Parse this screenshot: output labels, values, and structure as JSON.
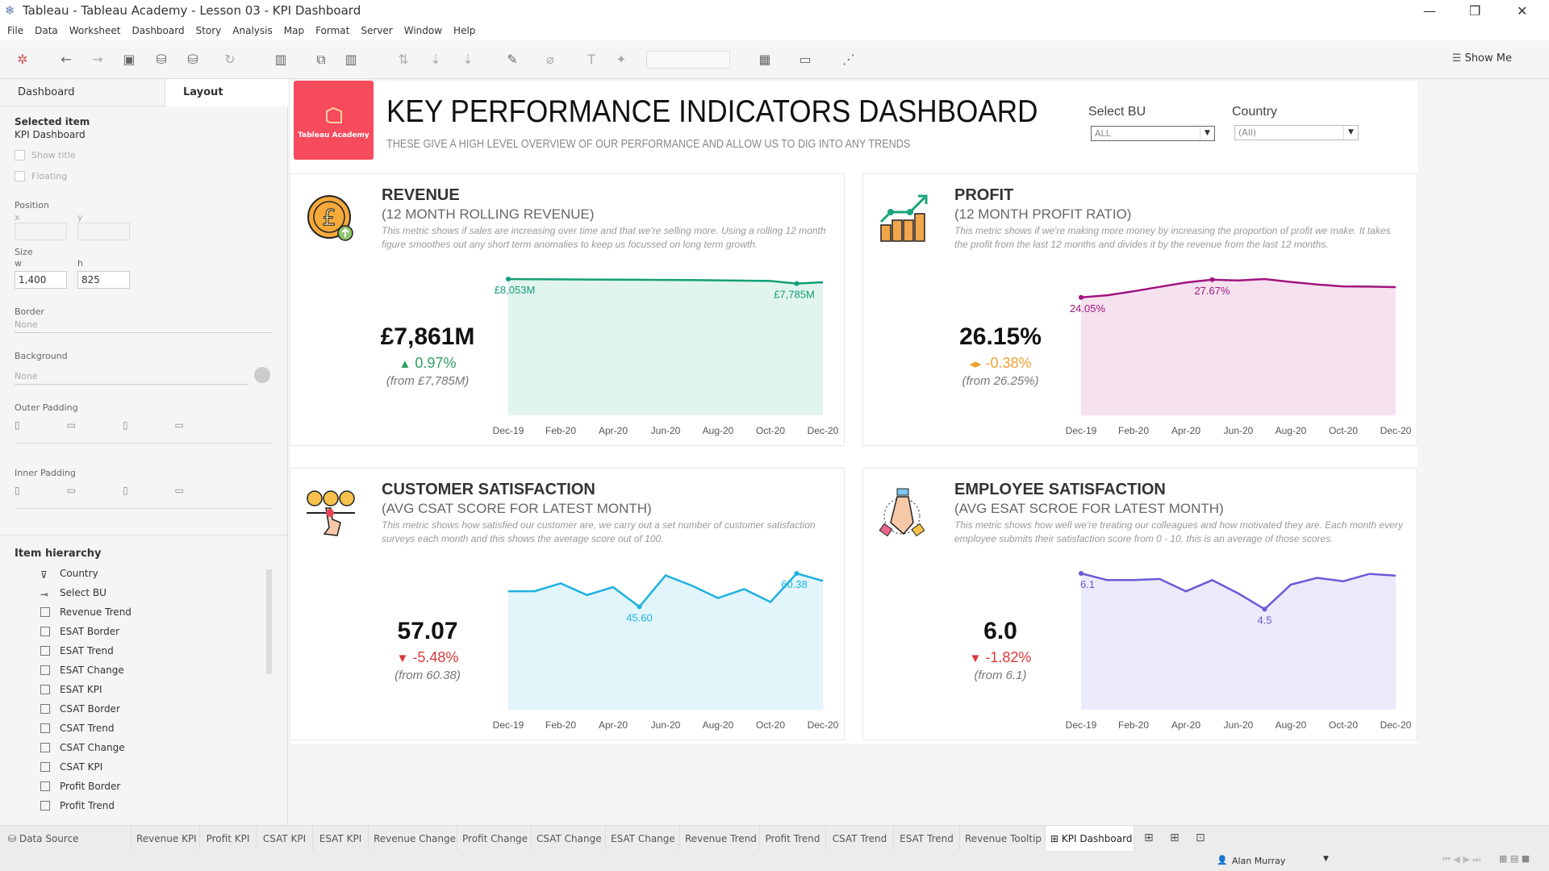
{
  "window": {
    "title": "Tableau - Tableau Academy - Lesson 03 - KPI Dashboard"
  },
  "menu": [
    "File",
    "Data",
    "Worksheet",
    "Dashboard",
    "Story",
    "Analysis",
    "Map",
    "Format",
    "Server",
    "Window",
    "Help"
  ],
  "toolbar": {
    "show_me": "Show Me"
  },
  "left_panel": {
    "tabs": [
      "Dashboard",
      "Layout"
    ],
    "selected_item_label": "Selected item",
    "selected_item": "KPI Dashboard",
    "show_title": "Show title",
    "floating": "Floating",
    "position_label": "Position",
    "x_label": "x",
    "y_label": "y",
    "size_label": "Size",
    "w_label": "w",
    "h_label": "h",
    "w": "1,400",
    "h": "825",
    "border_label": "Border",
    "border": "None",
    "background_label": "Background",
    "background": "None",
    "outer_padding": "Outer Padding",
    "inner_padding": "Inner Padding",
    "hierarchy_label": "Item hierarchy",
    "hierarchy": [
      "Country",
      "Select BU",
      "Revenue Trend",
      "ESAT Border",
      "ESAT Trend",
      "ESAT Change",
      "ESAT KPI",
      "CSAT Border",
      "CSAT Trend",
      "CSAT Change",
      "CSAT KPI",
      "Profit Border",
      "Profit Trend"
    ]
  },
  "dashboard": {
    "logo": "Tableau Academy",
    "title": "KEY PERFORMANCE INDICATORS DASHBOARD",
    "subtitle": "THESE GIVE A HIGH LEVEL OVERVIEW OF OUR PERFORMANCE AND ALLOW US TO DIG INTO ANY TRENDS",
    "filters": [
      {
        "label": "Select BU",
        "value": "ALL"
      },
      {
        "label": "Country",
        "value": "(All)"
      }
    ],
    "cards": [
      {
        "title": "REVENUE",
        "subtitle": "(12 MONTH ROLLING REVENUE)",
        "description": "This metric shows if sales are increasing over time and that we're selling more. Using a rolling 12 month figure smoothes out any short term anomalies to keep us focussed on long term growth.",
        "value": "£7,861M",
        "change": "0.97%",
        "direction": "up",
        "from": "(from £7,785M)",
        "icon": "pound-coin-icon",
        "color": "#129f77",
        "fill": "#e2f4ee"
      },
      {
        "title": "PROFIT",
        "subtitle": "(12 MONTH PROFIT RATIO)",
        "description": "This metric shows if we're making more money by increasing the proportion of profit we make. It takes the profit from the last 12 months and divides it by the revenue from the last 12 months.",
        "value": "26.15%",
        "change": "-0.38%",
        "direction": "flat",
        "from": "(from 26.25%)",
        "icon": "growth-chart-icon",
        "color": "#a1157f",
        "fill": "#f6e1ef"
      },
      {
        "title": "CUSTOMER SATISFACTION",
        "subtitle": "(AVG CSAT SCORE FOR LATEST MONTH)",
        "description": "This metric shows how satisfied our customer are, we carry out a set number of customer satisfaction surveys each month and this shows the average score out of 100.",
        "value": "57.07",
        "change": "-5.48%",
        "direction": "down",
        "from": "(from 60.38)",
        "icon": "satisfaction-faces-icon",
        "color": "#1eb1e0",
        "fill": "#e1f5fb"
      },
      {
        "title": "EMPLOYEE SATISFACTION",
        "subtitle": "(AVG ESAT SCROE FOR LATEST MONTH)",
        "description": "This metric shows how well we're treating our colleagues and how motivated they are. Each month every employee submits their satisfaction score from 0 - 10, this is an average of those scores.",
        "value": "6.0",
        "change": "-1.82%",
        "direction": "down",
        "from": "(from 6.1)",
        "icon": "team-hands-icon",
        "color": "#6a5bd8",
        "fill": "#ebeafb"
      }
    ]
  },
  "chart_data": [
    {
      "type": "area",
      "x": [
        "Dec-19",
        "Jan-20",
        "Feb-20",
        "Mar-20",
        "Apr-20",
        "May-20",
        "Jun-20",
        "Jul-20",
        "Aug-20",
        "Sep-20",
        "Oct-20",
        "Nov-20",
        "Dec-20"
      ],
      "tick_labels": [
        "Dec-19",
        "Feb-20",
        "Apr-20",
        "Jun-20",
        "Aug-20",
        "Oct-20",
        "Dec-20"
      ],
      "values": [
        8053,
        8045,
        8035,
        8025,
        8015,
        8010,
        8000,
        7990,
        7975,
        7960,
        7940,
        7785,
        7861
      ],
      "ylim": [
        0,
        8053
      ],
      "labels": [
        {
          "index": 0,
          "text": "£8,053M"
        },
        {
          "index": 11,
          "text": "£7,785M"
        }
      ]
    },
    {
      "type": "area",
      "x": [
        "Dec-19",
        "Jan-20",
        "Feb-20",
        "Mar-20",
        "Apr-20",
        "May-20",
        "Jun-20",
        "Jul-20",
        "Aug-20",
        "Sep-20",
        "Oct-20",
        "Nov-20",
        "Dec-20"
      ],
      "tick_labels": [
        "Dec-19",
        "Feb-20",
        "Apr-20",
        "Jun-20",
        "Aug-20",
        "Oct-20",
        "Dec-20"
      ],
      "values": [
        24.05,
        24.5,
        25.3,
        26.2,
        27.1,
        27.67,
        27.5,
        27.8,
        27.2,
        26.7,
        26.3,
        26.25,
        26.15
      ],
      "ylim": [
        0,
        27.8
      ],
      "labels": [
        {
          "index": 0,
          "text": "24.05%"
        },
        {
          "index": 5,
          "text": "27.67%"
        }
      ]
    },
    {
      "type": "area",
      "x": [
        "Dec-19",
        "Jan-20",
        "Feb-20",
        "Mar-20",
        "Apr-20",
        "May-20",
        "Jun-20",
        "Jul-20",
        "Aug-20",
        "Sep-20",
        "Oct-20",
        "Nov-20",
        "Dec-20"
      ],
      "tick_labels": [
        "Dec-19",
        "Feb-20",
        "Apr-20",
        "Jun-20",
        "Aug-20",
        "Oct-20",
        "Dec-20"
      ],
      "values": [
        52.5,
        52.5,
        56,
        50.8,
        54.3,
        45.6,
        59.5,
        55,
        49.5,
        53.4,
        47.7,
        60.38,
        57.07
      ],
      "ylim": [
        0,
        60.38
      ],
      "labels": [
        {
          "index": 5,
          "text": "45.60"
        },
        {
          "index": 11,
          "text": "60.38"
        }
      ]
    },
    {
      "type": "area",
      "x": [
        "Dec-19",
        "Jan-20",
        "Feb-20",
        "Mar-20",
        "Apr-20",
        "May-20",
        "Jun-20",
        "Jul-20",
        "Aug-20",
        "Sep-20",
        "Oct-20",
        "Nov-20",
        "Dec-20"
      ],
      "tick_labels": [
        "Dec-19",
        "Feb-20",
        "Apr-20",
        "Jun-20",
        "Aug-20",
        "Oct-20",
        "Dec-20"
      ],
      "values": [
        6.1,
        5.8,
        5.8,
        5.85,
        5.3,
        5.8,
        5.2,
        4.5,
        5.6,
        5.9,
        5.75,
        6.08,
        6.0
      ],
      "ylim": [
        0,
        6.1
      ],
      "labels": [
        {
          "index": 0,
          "text": "6.1"
        },
        {
          "index": 7,
          "text": "4.5"
        }
      ]
    }
  ],
  "sheet_tabs": {
    "data_source": "Data Source",
    "tabs": [
      "Revenue KPI",
      "Profit KPI",
      "CSAT KPI",
      "ESAT KPI",
      "Revenue Change",
      "Profit Change",
      "CSAT Change",
      "ESAT Change",
      "Revenue Trend",
      "Profit Trend",
      "CSAT Trend",
      "ESAT Trend",
      "Revenue Tooltip",
      "KPI Dashboard"
    ],
    "active": "KPI Dashboard"
  },
  "status": {
    "user": "Alan Murray"
  }
}
